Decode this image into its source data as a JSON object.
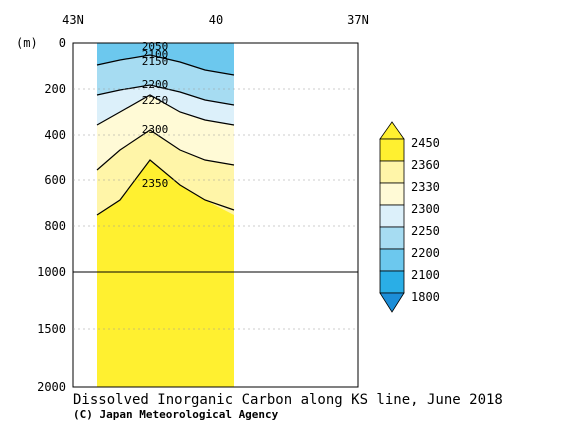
{
  "chart_data": {
    "type": "heatmap",
    "title": "Dissolved Inorganic Carbon along KS line, June 2018",
    "credit": "(C) Japan Meteorological Agency",
    "ylabel": "(m)",
    "x_ticks": [
      "43N",
      "40",
      "37N"
    ],
    "x_tick_values": [
      43,
      40,
      37
    ],
    "xlim": [
      43,
      37
    ],
    "y_ticks_upper": [
      "0",
      "200",
      "400",
      "600",
      "800",
      "1000"
    ],
    "y_tick_values_upper": [
      0,
      200,
      400,
      600,
      800,
      1000
    ],
    "y_ticks_lower": [
      "1500",
      "2000"
    ],
    "y_tick_values_lower": [
      1500,
      2000
    ],
    "ylim": [
      0,
      2000
    ],
    "y_break": 1000,
    "grid": "dashed horizontal",
    "data_extent_lat": [
      42.6,
      39.7
    ],
    "station_lats": [
      42.4,
      41.7,
      40.8,
      40.0
    ],
    "colorbar_labels": [
      "2450",
      "2360",
      "2330",
      "2300",
      "2250",
      "2200",
      "2100",
      "1800"
    ],
    "colorbar_levels": [
      2450,
      2360,
      2330,
      2300,
      2250,
      2200,
      2100,
      1800
    ],
    "colorbar_colors": [
      "#fff030",
      "#fff5a8",
      "#fffad6",
      "#dcf0fa",
      "#a6dcf2",
      "#6cc8ee",
      "#2aaee6",
      "#1c8ed8"
    ],
    "contour_labels": [
      {
        "text": "2050",
        "lat": 41.8,
        "depth": 20
      },
      {
        "text": "2100",
        "lat": 41.8,
        "depth": 35
      },
      {
        "text": "2150",
        "lat": 41.8,
        "depth": 65
      },
      {
        "text": "2200",
        "lat": 41.8,
        "depth": 170
      },
      {
        "text": "2250",
        "lat": 41.8,
        "depth": 245
      },
      {
        "text": "2300",
        "lat": 41.8,
        "depth": 380
      },
      {
        "text": "2350",
        "lat": 41.8,
        "depth": 605
      }
    ]
  }
}
